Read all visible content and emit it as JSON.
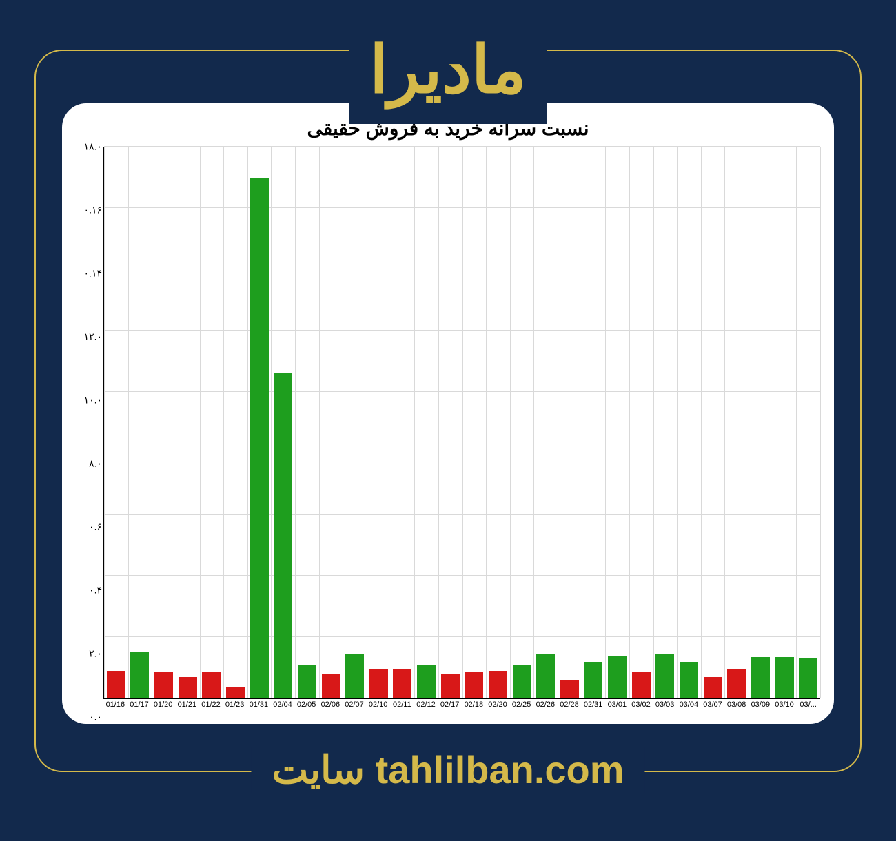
{
  "header": {
    "symbol": "مادیرا"
  },
  "footer": {
    "site_label": "سایت",
    "site_url": "tahlilban.com"
  },
  "chart": {
    "type": "bar",
    "title": "نسبت سرانه خرید به فروش حقیقی",
    "background_color": "#ffffff",
    "grid_color": "#d9d9d9",
    "axis_color": "#000000",
    "ylim": [
      0,
      18
    ],
    "ytick_step": 2,
    "ytick_labels": [
      "٠.٠",
      "٢.٠",
      "۴.٠",
      "۶.٠",
      "٨.٠",
      "١٠.٠",
      "١٢.٠",
      "١۴.٠",
      "١۶.٠",
      "١٨.٠"
    ],
    "bar_width": 0.78,
    "title_fontsize": 28,
    "xlabel_fontsize": 11,
    "ylabel_fontsize": 14,
    "green": "#1e9e1e",
    "red": "#d81818",
    "categories": [
      "01/16",
      "01/17",
      "01/20",
      "01/21",
      "01/22",
      "01/23",
      "01/31",
      "02/04",
      "02/05",
      "02/06",
      "02/07",
      "02/10",
      "02/11",
      "02/12",
      "02/17",
      "02/18",
      "02/20",
      "02/25",
      "02/26",
      "02/28",
      "02/31",
      "03/01",
      "03/02",
      "03/03",
      "03/04",
      "03/07",
      "03/08",
      "03/09",
      "03/10",
      "03/..."
    ],
    "values": [
      0.9,
      1.5,
      0.85,
      0.7,
      0.85,
      0.35,
      17.0,
      10.6,
      1.1,
      0.8,
      1.45,
      0.95,
      0.95,
      1.1,
      0.8,
      0.85,
      0.9,
      1.1,
      1.45,
      0.6,
      1.2,
      1.4,
      0.85,
      1.45,
      1.2,
      0.7,
      0.95,
      1.35,
      1.35,
      1.3
    ],
    "bar_colors": [
      "#d81818",
      "#1e9e1e",
      "#d81818",
      "#d81818",
      "#d81818",
      "#d81818",
      "#1e9e1e",
      "#1e9e1e",
      "#1e9e1e",
      "#d81818",
      "#1e9e1e",
      "#d81818",
      "#d81818",
      "#1e9e1e",
      "#d81818",
      "#d81818",
      "#d81818",
      "#1e9e1e",
      "#1e9e1e",
      "#d81818",
      "#1e9e1e",
      "#1e9e1e",
      "#d81818",
      "#1e9e1e",
      "#1e9e1e",
      "#d81818",
      "#d81818",
      "#1e9e1e",
      "#1e9e1e",
      "#1e9e1e"
    ]
  },
  "page": {
    "bg": "#12294c",
    "accent": "#d4b94a"
  }
}
